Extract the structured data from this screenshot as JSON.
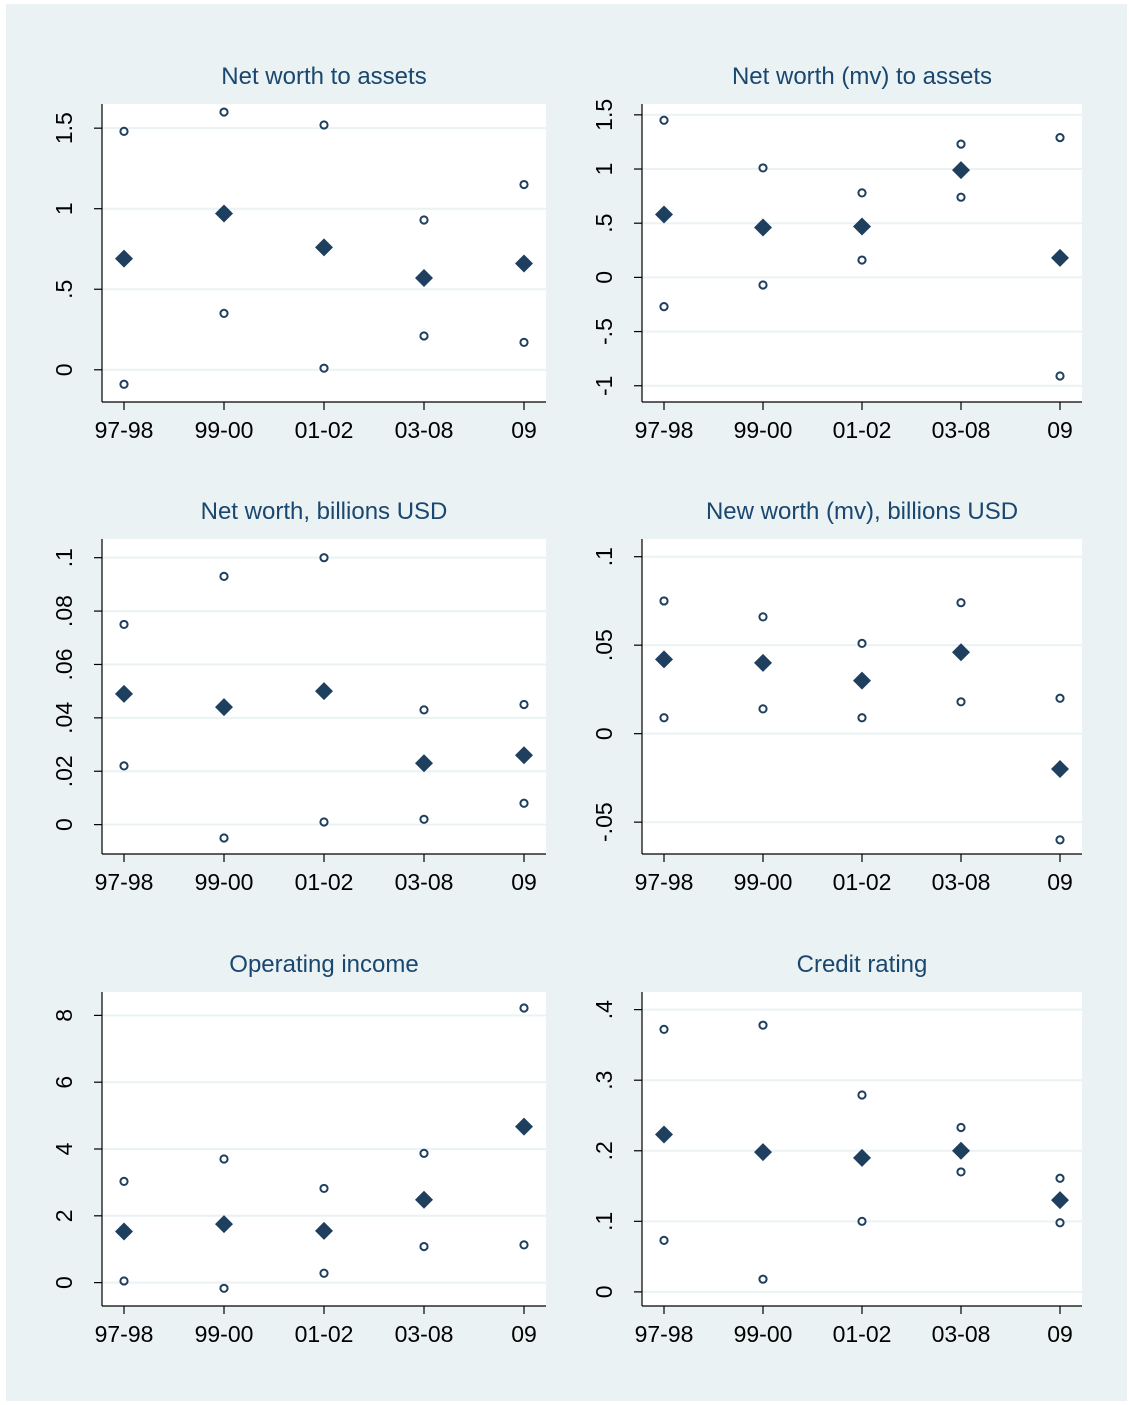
{
  "colors": {
    "background": "#eaf2f3",
    "plot_area": "#ffffff",
    "gridline": "#eaf2f3",
    "title": "#1a476f",
    "marker": "#1f3f5f"
  },
  "chart_data": [
    {
      "type": "scatter",
      "title": "Net worth to assets",
      "categories": [
        "97-98",
        "99-00",
        "01-02",
        "03-08",
        "09"
      ],
      "yticks": [
        0,
        0.5,
        1,
        1.5
      ],
      "ytick_labels": [
        "0",
        ".5",
        "1",
        "1.5"
      ],
      "ylim": [
        -0.2,
        1.65
      ],
      "series": [
        {
          "marker": "diamond",
          "values": [
            0.69,
            0.97,
            0.76,
            0.57,
            0.66
          ]
        },
        {
          "marker": "hollow-circle",
          "values": [
            1.48,
            1.6,
            1.52,
            0.93,
            1.15
          ]
        },
        {
          "marker": "hollow-circle",
          "values": [
            -0.09,
            0.35,
            0.01,
            0.21,
            0.17
          ]
        }
      ]
    },
    {
      "type": "scatter",
      "title": "Net worth (mv) to assets",
      "categories": [
        "97-98",
        "99-00",
        "01-02",
        "03-08",
        "09"
      ],
      "yticks": [
        -1,
        -0.5,
        0,
        0.5,
        1,
        1.5
      ],
      "ytick_labels": [
        "-1",
        "-.5",
        "0",
        ".5",
        "1",
        "1.5"
      ],
      "ylim": [
        -1.15,
        1.6
      ],
      "series": [
        {
          "marker": "diamond",
          "values": [
            0.58,
            0.46,
            0.47,
            0.99,
            0.18
          ]
        },
        {
          "marker": "hollow-circle",
          "values": [
            1.45,
            1.01,
            0.78,
            1.23,
            1.29
          ]
        },
        {
          "marker": "hollow-circle",
          "values": [
            -0.27,
            -0.07,
            0.16,
            0.74,
            -0.91
          ]
        }
      ]
    },
    {
      "type": "scatter",
      "title": "Net worth, billions USD",
      "categories": [
        "97-98",
        "99-00",
        "01-02",
        "03-08",
        "09"
      ],
      "yticks": [
        0,
        0.02,
        0.04,
        0.06,
        0.08,
        0.1
      ],
      "ytick_labels": [
        "0",
        ".02",
        ".04",
        ".06",
        ".08",
        ".1"
      ],
      "ylim": [
        -0.011,
        0.107
      ],
      "series": [
        {
          "marker": "diamond",
          "values": [
            0.049,
            0.044,
            0.05,
            0.023,
            0.026
          ]
        },
        {
          "marker": "hollow-circle",
          "values": [
            0.075,
            0.093,
            0.1,
            0.043,
            0.045
          ]
        },
        {
          "marker": "hollow-circle",
          "values": [
            0.022,
            -0.005,
            0.001,
            0.002,
            0.008
          ]
        }
      ]
    },
    {
      "type": "scatter",
      "title": "New worth (mv), billions USD",
      "categories": [
        "97-98",
        "99-00",
        "01-02",
        "03-08",
        "09"
      ],
      "yticks": [
        -0.05,
        0,
        0.05,
        0.1
      ],
      "ytick_labels": [
        "-.05",
        "0",
        ".05",
        ".1"
      ],
      "ylim": [
        -0.068,
        0.11
      ],
      "series": [
        {
          "marker": "diamond",
          "values": [
            0.042,
            0.04,
            0.03,
            0.046,
            -0.02
          ]
        },
        {
          "marker": "hollow-circle",
          "values": [
            0.075,
            0.066,
            0.051,
            0.074,
            0.02
          ]
        },
        {
          "marker": "hollow-circle",
          "values": [
            0.009,
            0.014,
            0.009,
            0.018,
            -0.06
          ]
        }
      ]
    },
    {
      "type": "scatter",
      "title": "Operating income",
      "categories": [
        "97-98",
        "99-00",
        "01-02",
        "03-08",
        "09"
      ],
      "yticks": [
        0,
        2,
        4,
        6,
        8
      ],
      "ytick_labels": [
        "0",
        "2",
        "4",
        "6",
        "8"
      ],
      "ylim": [
        -0.7,
        8.7
      ],
      "series": [
        {
          "marker": "diamond",
          "values": [
            1.53,
            1.75,
            1.55,
            2.48,
            4.67
          ]
        },
        {
          "marker": "hollow-circle",
          "values": [
            3.03,
            3.7,
            2.82,
            3.87,
            8.22
          ]
        },
        {
          "marker": "hollow-circle",
          "values": [
            0.05,
            -0.17,
            0.28,
            1.08,
            1.13
          ]
        }
      ]
    },
    {
      "type": "scatter",
      "title": "Credit rating",
      "categories": [
        "97-98",
        "99-00",
        "01-02",
        "03-08",
        "09"
      ],
      "yticks": [
        0,
        0.1,
        0.2,
        0.3,
        0.4
      ],
      "ytick_labels": [
        "0",
        ".1",
        ".2",
        ".3",
        ".4"
      ],
      "ylim": [
        -0.02,
        0.425
      ],
      "series": [
        {
          "marker": "diamond",
          "values": [
            0.223,
            0.198,
            0.19,
            0.2,
            0.13
          ]
        },
        {
          "marker": "hollow-circle",
          "values": [
            0.372,
            0.378,
            0.279,
            0.233,
            0.161
          ]
        },
        {
          "marker": "hollow-circle",
          "values": [
            0.073,
            0.018,
            0.1,
            0.17,
            0.098
          ]
        }
      ]
    }
  ]
}
